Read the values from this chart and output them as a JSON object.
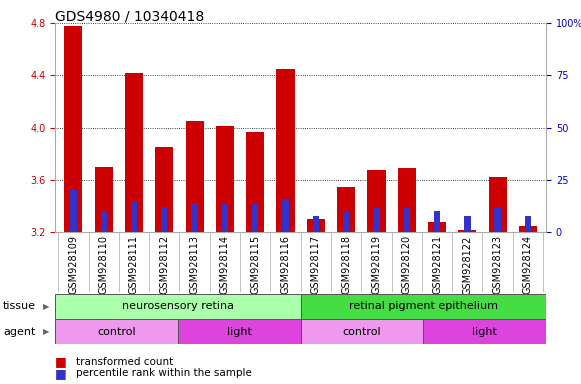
{
  "title": "GDS4980 / 10340418",
  "samples": [
    "GSM928109",
    "GSM928110",
    "GSM928111",
    "GSM928112",
    "GSM928113",
    "GSM928114",
    "GSM928115",
    "GSM928116",
    "GSM928117",
    "GSM928118",
    "GSM928119",
    "GSM928120",
    "GSM928121",
    "GSM928122",
    "GSM928123",
    "GSM928124"
  ],
  "red_values": [
    4.78,
    3.7,
    4.42,
    3.85,
    4.05,
    4.01,
    3.97,
    4.45,
    3.3,
    3.55,
    3.68,
    3.69,
    3.28,
    3.22,
    3.62,
    3.25
  ],
  "blue_pct": [
    20,
    10,
    15,
    12,
    14,
    14,
    14,
    16,
    8,
    10,
    12,
    12,
    10,
    8,
    12,
    8
  ],
  "ymin": 3.2,
  "ymax": 4.8,
  "yticks_left": [
    3.2,
    3.6,
    4.0,
    4.4,
    4.8
  ],
  "yticks_right": [
    0,
    25,
    50,
    75,
    100
  ],
  "ytick_labels_right": [
    "0",
    "25",
    "50",
    "75",
    "100%"
  ],
  "bar_color_red": "#cc0000",
  "bar_color_blue": "#3333cc",
  "tick_color_left": "#cc0000",
  "tick_color_right": "#0000cc",
  "tissue_groups": [
    {
      "label": "neurosensory retina",
      "start": 0,
      "end": 8,
      "color": "#aaffaa"
    },
    {
      "label": "retinal pigment epithelium",
      "start": 8,
      "end": 16,
      "color": "#44dd44"
    }
  ],
  "agent_groups": [
    {
      "label": "control",
      "start": 0,
      "end": 4,
      "color": "#ee99ee"
    },
    {
      "label": "light",
      "start": 4,
      "end": 8,
      "color": "#dd44dd"
    },
    {
      "label": "control",
      "start": 8,
      "end": 12,
      "color": "#ee99ee"
    },
    {
      "label": "light",
      "start": 12,
      "end": 16,
      "color": "#dd44dd"
    }
  ],
  "legend_red_label": "transformed count",
  "legend_blue_label": "percentile rank within the sample",
  "bar_width": 0.6,
  "bg_color": "#ffffff",
  "title_fontsize": 10,
  "tick_fontsize": 7,
  "tissue_row_label": "tissue",
  "agent_row_label": "agent"
}
